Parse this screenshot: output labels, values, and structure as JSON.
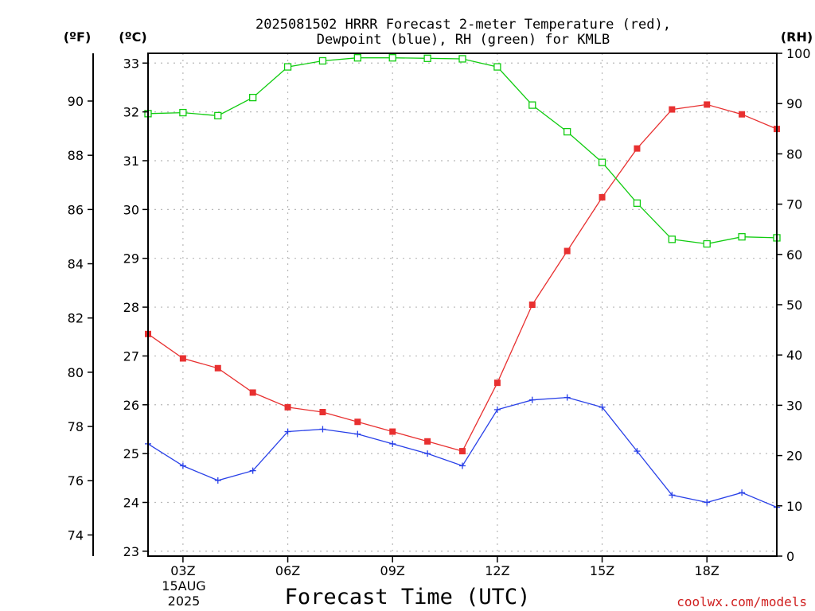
{
  "chart_data": {
    "type": "line",
    "title_line1": "2025081502 HRRR Forecast 2-meter Temperature (red),",
    "title_line2": "Dewpoint (blue), RH (green) for KMLB",
    "xlabel": "Forecast Time (UTC)",
    "units": {
      "fahrenheit": "(ºF)",
      "celsius": "(ºC)",
      "rh": "(RH)"
    },
    "date_labels": [
      "15AUG",
      "2025"
    ],
    "credit": "coolwx.com/models",
    "x_hours": [
      2,
      3,
      4,
      5,
      6,
      7,
      8,
      9,
      10,
      11,
      12,
      13,
      14,
      15,
      16,
      17,
      18,
      19,
      20
    ],
    "xlim": [
      2,
      20
    ],
    "x_ticks": [
      {
        "hour": 3,
        "label": "03Z"
      },
      {
        "hour": 6,
        "label": "06Z"
      },
      {
        "hour": 9,
        "label": "09Z"
      },
      {
        "hour": 12,
        "label": "12Z"
      },
      {
        "hour": 15,
        "label": "15Z"
      },
      {
        "hour": 18,
        "label": "18Z"
      }
    ],
    "celsius_axis": {
      "ylim": [
        22.9,
        33.2
      ],
      "ticks": [
        23,
        24,
        25,
        26,
        27,
        28,
        29,
        30,
        31,
        32,
        33
      ]
    },
    "fahrenheit_ticks": [
      74,
      76,
      78,
      80,
      82,
      84,
      86,
      88,
      90
    ],
    "rh_axis": {
      "ylim": [
        0,
        100
      ],
      "ticks": [
        0,
        10,
        20,
        30,
        40,
        50,
        60,
        70,
        80,
        90,
        100
      ]
    },
    "grid": true,
    "colors": {
      "temperature": "#e83030",
      "dewpoint": "#2840e8",
      "rh": "#10cc10"
    },
    "series": [
      {
        "key": "temperature",
        "axis": "celsius",
        "marker": "square-filled",
        "values": [
          27.45,
          26.95,
          26.75,
          26.25,
          25.95,
          25.85,
          25.65,
          25.45,
          25.25,
          25.05,
          26.45,
          28.05,
          29.15,
          30.25,
          31.25,
          32.05,
          32.15,
          31.95,
          31.65
        ]
      },
      {
        "key": "dewpoint",
        "axis": "celsius",
        "marker": "plus",
        "values": [
          25.2,
          24.75,
          24.45,
          24.65,
          25.45,
          25.5,
          25.4,
          25.2,
          25.0,
          24.75,
          25.9,
          26.1,
          26.15,
          25.95,
          25.05,
          24.15,
          24.0,
          24.2,
          23.9
        ]
      },
      {
        "key": "rh",
        "axis": "rh",
        "marker": "square-open",
        "values": [
          88,
          88.2,
          87.6,
          91.2,
          97.3,
          98.5,
          99.1,
          99.1,
          99.0,
          98.9,
          97.3,
          89.7,
          84.4,
          78.3,
          70.2,
          63.0,
          62.1,
          63.5,
          63.3
        ]
      }
    ]
  }
}
